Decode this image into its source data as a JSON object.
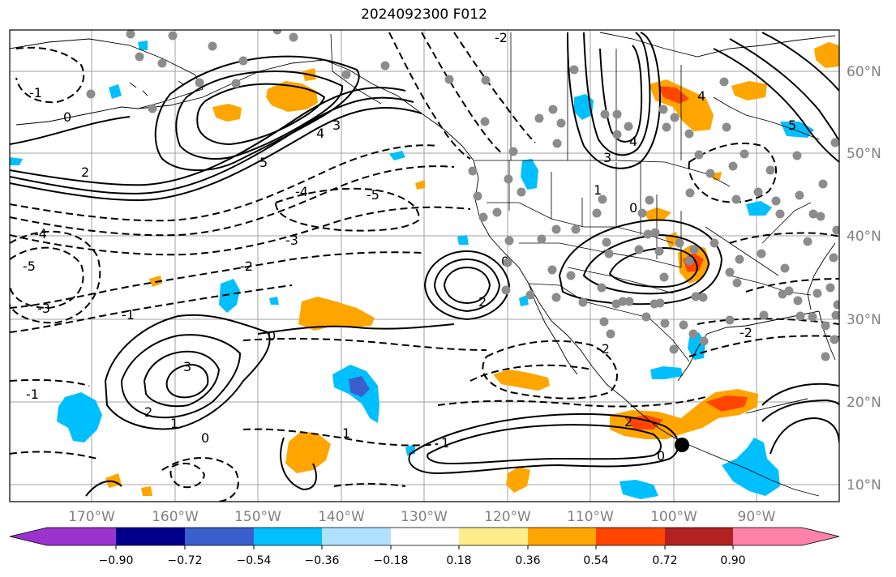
{
  "title": "2024092300 F012",
  "map": {
    "lon_labels": [
      "170°W",
      "160°W",
      "150°W",
      "140°W",
      "130°W",
      "120°W",
      "110°W",
      "100°W",
      "90°W"
    ],
    "lat_labels": [
      "60°N",
      "50°N",
      "40°N",
      "30°N",
      "20°N",
      "10°N"
    ],
    "contour_labels": [
      "0",
      "1",
      "2",
      "3",
      "4",
      "5",
      "-1",
      "-2",
      "-3",
      "-4",
      "-5"
    ],
    "grid": true,
    "contour_interval": 1
  },
  "colorbar": {
    "ticks": [
      "−0.90",
      "−0.72",
      "−0.54",
      "−0.36",
      "−0.18",
      "0.18",
      "0.36",
      "0.54",
      "0.72",
      "0.90"
    ],
    "colors": [
      "#9a32cd",
      "#00008b",
      "#3a5fcd",
      "#00bfff",
      "#b0e2ff",
      "#ffffff",
      "#ffec8b",
      "#ffa500",
      "#ff4500",
      "#b22222",
      "#ff82ab"
    ]
  },
  "fill_colors": {
    "orange": "#ffa500",
    "red_orange": "#ff4500",
    "sky_blue": "#00bfff",
    "slate_blue": "#3a5fcd",
    "station_gray": "#8c8c8c"
  }
}
